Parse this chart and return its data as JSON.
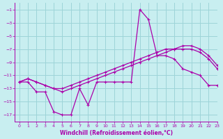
{
  "xlabel": "Windchill (Refroidissement éolien,°C)",
  "bg_color": "#c8eef0",
  "grid_color": "#9dd4d8",
  "line_color": "#aa00aa",
  "xlim": [
    -0.5,
    23
  ],
  "ylim": [
    -18,
    0
  ],
  "xticks": [
    0,
    1,
    2,
    3,
    4,
    5,
    6,
    7,
    8,
    9,
    10,
    11,
    12,
    13,
    14,
    15,
    16,
    17,
    18,
    19,
    20,
    21,
    22,
    23
  ],
  "yticks": [
    -17,
    -15,
    -13,
    -11,
    -9,
    -7,
    -5,
    -3,
    -1
  ],
  "line1_x": [
    0,
    1,
    2,
    3,
    4,
    5,
    6,
    7,
    8,
    9,
    10,
    11,
    12,
    13,
    14,
    15,
    16,
    17,
    18,
    19,
    20,
    21,
    22,
    23
  ],
  "line1_y": [
    -12,
    -12,
    -13.5,
    -13.5,
    -16.5,
    -17,
    -17,
    -13,
    -15.5,
    -12,
    -12,
    -12,
    -12,
    -12,
    -1,
    -2.5,
    -8,
    -8,
    -8.5,
    -10,
    -10.5,
    -11,
    -12.5,
    -12.5
  ],
  "line2_x": [
    0,
    1,
    2,
    3,
    4,
    5,
    6,
    7,
    8,
    9,
    10,
    11,
    12,
    13,
    14,
    15,
    16,
    17,
    18,
    19,
    20,
    21,
    22,
    23
  ],
  "line2_y": [
    -12,
    -11.5,
    -12,
    -12.5,
    -13,
    -13,
    -12.5,
    -12,
    -11.5,
    -11,
    -10.5,
    -10,
    -9.5,
    -9,
    -8.5,
    -8,
    -7.5,
    -7,
    -7,
    -7,
    -7,
    -7.5,
    -8.5,
    -10
  ],
  "line3_x": [
    0,
    1,
    2,
    3,
    4,
    5,
    6,
    7,
    8,
    9,
    10,
    11,
    12,
    13,
    14,
    15,
    16,
    17,
    18,
    19,
    20,
    21,
    22,
    23
  ],
  "line3_y": [
    -12,
    -11.5,
    -12,
    -12.5,
    -13,
    -13.5,
    -13,
    -12.5,
    -12,
    -11.5,
    -11,
    -10.5,
    -10,
    -9.5,
    -9,
    -8.5,
    -8,
    -7.5,
    -7,
    -6.5,
    -6.5,
    -7,
    -8,
    -9.5
  ]
}
